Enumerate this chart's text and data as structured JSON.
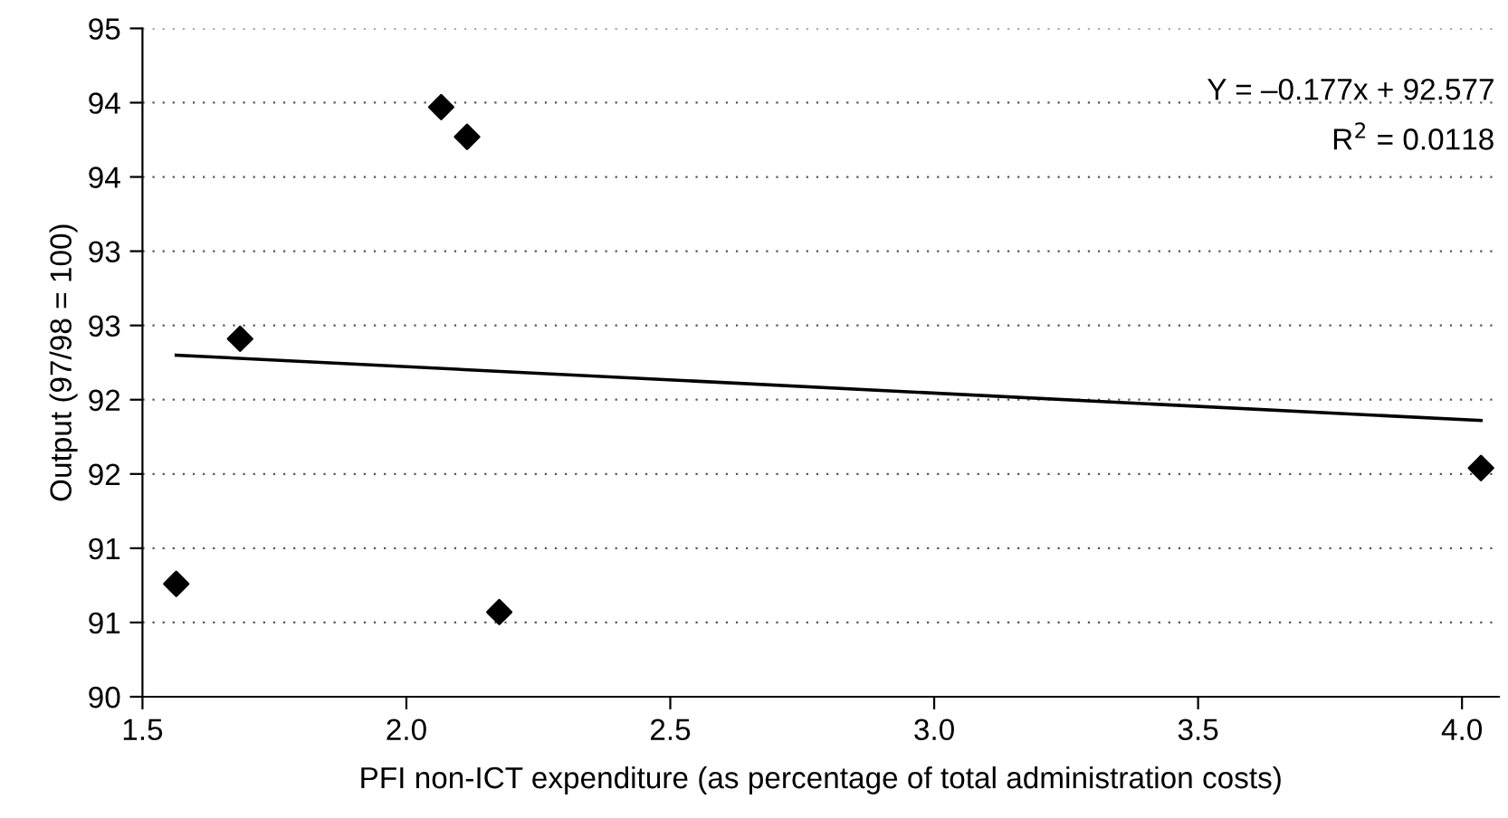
{
  "chart_data": {
    "type": "scatter",
    "xlabel": "PFI non-ICT expenditure (as percentage of total administration costs)",
    "ylabel": "Output (97/98 = 100)",
    "series": [
      {
        "color": "#000000",
        "marker": "diamond",
        "x": [
          1.564,
          1.685,
          2.066,
          2.115,
          2.176,
          4.036
        ],
        "values": [
          90.76,
          92.41,
          93.97,
          93.77,
          90.57,
          91.54
        ]
      },
      {
        "type": "line",
        "color": "#000000",
        "line_style": "solid",
        "x": [
          1.564,
          4.036
        ],
        "values": [
          92.3,
          91.86
        ]
      }
    ],
    "annotations": [
      "Y = –0.177x + 92.577",
      "R$^{2}$ = 0.0118"
    ],
    "xlim": [
      1.5,
      4.07
    ],
    "xticks": [
      {
        "value": 1.5,
        "label": "1.5"
      },
      {
        "value": 2,
        "label": "2.0"
      },
      {
        "value": 2.5,
        "label": "2.5"
      },
      {
        "value": 3,
        "label": "3.0"
      },
      {
        "value": 3.5,
        "label": "3.5"
      },
      {
        "value": 4,
        "label": "4.0"
      }
    ],
    "ylim": [
      90,
      94.5
    ],
    "yticks": [
      90,
      {
        "value": 90.5,
        "label": "91"
      },
      91,
      {
        "value": 91.5,
        "label": "92"
      },
      92,
      {
        "value": 92.5,
        "label": "93"
      },
      93,
      {
        "value": 93.5,
        "label": "94"
      },
      94,
      {
        "value": 94.5,
        "label": "95"
      }
    ],
    "grid": "y",
    "legend": false
  }
}
